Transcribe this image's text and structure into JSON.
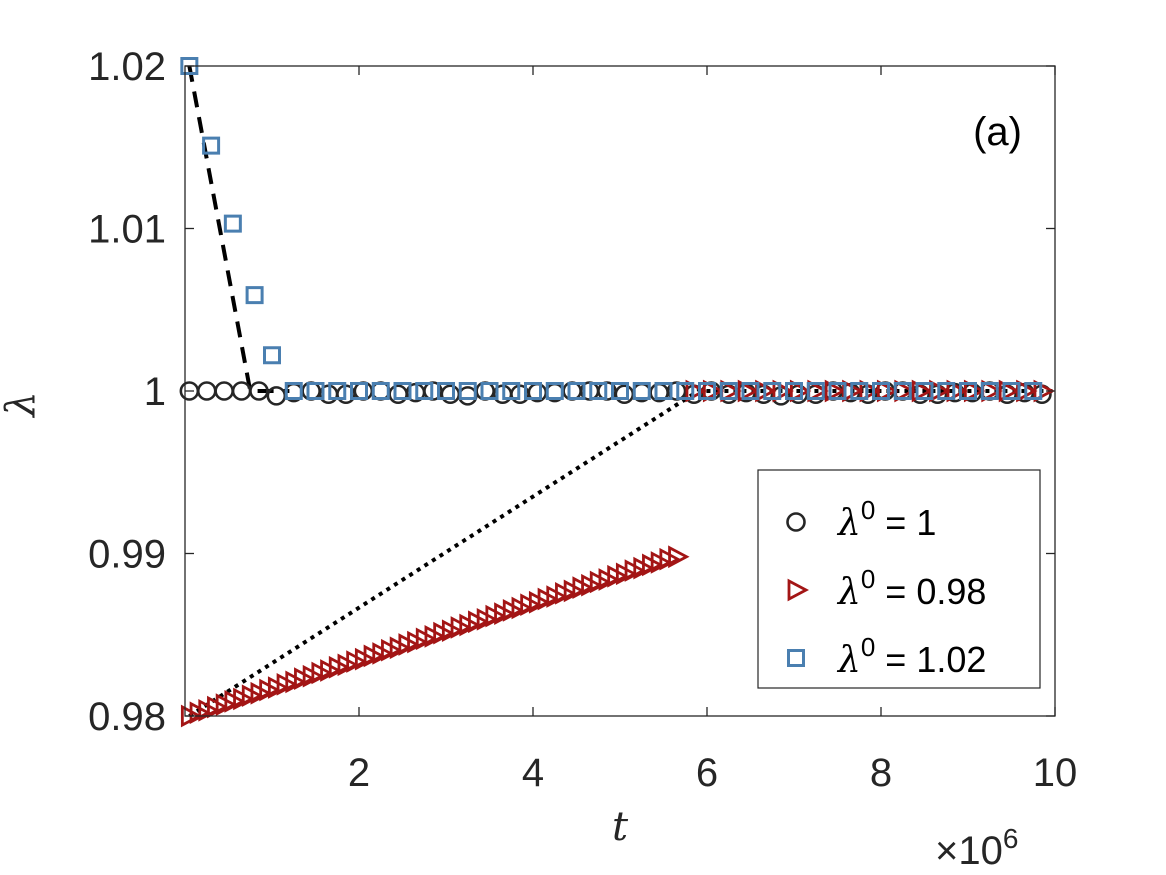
{
  "chart_data": {
    "type": "scatter",
    "panel_label": "(a)",
    "xlabel": "t",
    "ylabel": "λ",
    "x_multiplier": "×10",
    "x_multiplier_exp": "6",
    "xlim": [
      0,
      10
    ],
    "ylim": [
      0.98,
      1.02
    ],
    "x_unit_scale": 1000000,
    "xticks": [
      2,
      4,
      6,
      8,
      10
    ],
    "xtick_labels": [
      "2",
      "4",
      "6",
      "8",
      "10"
    ],
    "yticks": [
      0.98,
      0.99,
      1.0,
      1.01,
      1.02
    ],
    "ytick_labels": [
      "0.98",
      "0.99",
      "1",
      "1.01",
      "1.02"
    ],
    "grid": false,
    "legend_position": "bottom-right",
    "series": [
      {
        "name": "λ0 = 1",
        "legend_symbol": "λ",
        "legend_sup": "0",
        "legend_value": " = 1",
        "marker": "circle",
        "color": "#262626",
        "x_start": 0.05,
        "x_step": 0.2,
        "count": 50,
        "y": [
          1.0,
          1.0,
          1.0,
          1.0,
          1.0,
          0.9997,
          0.9999,
          1.0,
          0.9998,
          0.9998,
          1.0,
          1.0,
          0.9998,
          0.9999,
          1.0,
          0.9998,
          0.9997,
          1.0,
          0.9998,
          0.9998,
          0.9999,
          0.9999,
          1.0,
          1.0,
          1.0,
          0.9998,
          0.9999,
          0.9999,
          1.0,
          0.9998,
          1.0,
          0.9998,
          0.9999,
          0.9998,
          0.9997,
          0.9998,
          0.9998,
          1.0,
          0.9999,
          0.9998,
          1.0,
          1.0,
          0.9998,
          0.9998,
          0.9999,
          0.9999,
          1.0,
          0.9998,
          0.9999,
          0.9998
        ]
      },
      {
        "name": "λ0 = 0.98",
        "legend_symbol": "λ",
        "legend_sup": "0",
        "legend_value": " = 0.98",
        "marker": "triangle-right",
        "color": "#a31515",
        "points": [
          [
            0.05,
            0.98
          ],
          [
            0.15,
            0.9802
          ],
          [
            0.25,
            0.98035
          ],
          [
            0.35,
            0.98055
          ],
          [
            0.45,
            0.9807
          ],
          [
            0.55,
            0.9809
          ],
          [
            0.65,
            0.98105
          ],
          [
            0.75,
            0.98125
          ],
          [
            0.85,
            0.9814
          ],
          [
            0.95,
            0.9816
          ],
          [
            1.05,
            0.98175
          ],
          [
            1.15,
            0.98195
          ],
          [
            1.25,
            0.9821
          ],
          [
            1.35,
            0.9823
          ],
          [
            1.45,
            0.98245
          ],
          [
            1.55,
            0.98265
          ],
          [
            1.65,
            0.9828
          ],
          [
            1.75,
            0.983
          ],
          [
            1.85,
            0.98315
          ],
          [
            1.95,
            0.98335
          ],
          [
            2.05,
            0.9835
          ],
          [
            2.15,
            0.9837
          ],
          [
            2.25,
            0.98385
          ],
          [
            2.35,
            0.98405
          ],
          [
            2.45,
            0.9842
          ],
          [
            2.55,
            0.9844
          ],
          [
            2.65,
            0.98455
          ],
          [
            2.75,
            0.98475
          ],
          [
            2.85,
            0.9849
          ],
          [
            2.95,
            0.9851
          ],
          [
            3.05,
            0.98525
          ],
          [
            3.15,
            0.98545
          ],
          [
            3.25,
            0.9856
          ],
          [
            3.35,
            0.9858
          ],
          [
            3.45,
            0.98595
          ],
          [
            3.55,
            0.98615
          ],
          [
            3.65,
            0.9863
          ],
          [
            3.75,
            0.9865
          ],
          [
            3.85,
            0.98665
          ],
          [
            3.95,
            0.98685
          ],
          [
            4.05,
            0.987
          ],
          [
            4.15,
            0.9872
          ],
          [
            4.25,
            0.98735
          ],
          [
            4.35,
            0.98755
          ],
          [
            4.45,
            0.9877
          ],
          [
            4.55,
            0.9879
          ],
          [
            4.65,
            0.98805
          ],
          [
            4.75,
            0.98825
          ],
          [
            4.85,
            0.9884
          ],
          [
            4.95,
            0.9886
          ],
          [
            5.05,
            0.98875
          ],
          [
            5.15,
            0.98895
          ],
          [
            5.25,
            0.9891
          ],
          [
            5.35,
            0.9893
          ],
          [
            5.45,
            0.98945
          ],
          [
            5.55,
            0.98965
          ],
          [
            5.65,
            0.9898
          ],
          [
            5.85,
            1.0
          ],
          [
            6.05,
            1.0
          ],
          [
            6.25,
            1.0
          ],
          [
            6.45,
            1.0
          ],
          [
            6.65,
            1.0
          ],
          [
            6.85,
            1.0
          ],
          [
            7.05,
            1.0
          ],
          [
            7.25,
            1.0
          ],
          [
            7.45,
            1.0
          ],
          [
            7.65,
            1.0
          ],
          [
            7.85,
            1.0
          ],
          [
            8.05,
            1.0
          ],
          [
            8.25,
            1.0
          ],
          [
            8.45,
            1.0
          ],
          [
            8.65,
            1.0
          ],
          [
            8.85,
            1.0
          ],
          [
            9.05,
            1.0
          ],
          [
            9.25,
            1.0
          ],
          [
            9.45,
            1.0
          ],
          [
            9.65,
            1.0
          ],
          [
            9.85,
            1.0
          ]
        ]
      },
      {
        "name": "λ0 = 1.02",
        "legend_symbol": "λ",
        "legend_sup": "0",
        "legend_value": " = 1.02",
        "marker": "square",
        "color": "#4a7fb0",
        "points": [
          [
            0.05,
            1.02
          ],
          [
            0.3,
            1.0151
          ],
          [
            0.55,
            1.0103
          ],
          [
            0.8,
            1.0059
          ],
          [
            1.0,
            1.0022
          ],
          [
            1.25,
            1.0
          ],
          [
            1.5,
            1.0
          ],
          [
            1.75,
            1.0
          ],
          [
            2.0,
            1.0
          ],
          [
            2.25,
            1.0
          ],
          [
            2.5,
            1.0
          ],
          [
            2.75,
            1.0
          ],
          [
            3.0,
            1.0
          ],
          [
            3.25,
            1.0
          ],
          [
            3.5,
            1.0
          ],
          [
            3.75,
            1.0
          ],
          [
            4.0,
            1.0
          ],
          [
            4.25,
            1.0
          ],
          [
            4.5,
            1.0
          ],
          [
            4.75,
            1.0
          ],
          [
            5.0,
            1.0
          ],
          [
            5.25,
            1.0
          ],
          [
            5.5,
            1.0
          ],
          [
            5.75,
            1.0
          ],
          [
            6.0,
            1.0
          ],
          [
            6.25,
            1.0
          ],
          [
            6.5,
            1.0
          ],
          [
            6.75,
            1.0
          ],
          [
            7.0,
            1.0
          ],
          [
            7.25,
            1.0
          ],
          [
            7.5,
            1.0
          ],
          [
            7.75,
            1.0
          ],
          [
            8.0,
            1.0
          ],
          [
            8.25,
            1.0
          ],
          [
            8.5,
            1.0
          ],
          [
            8.75,
            1.0
          ],
          [
            9.0,
            1.0
          ],
          [
            9.25,
            1.0
          ],
          [
            9.5,
            1.0
          ],
          [
            9.75,
            1.0
          ]
        ]
      }
    ],
    "reference_lines": [
      {
        "style": "dashed",
        "color": "#000000",
        "points": [
          [
            0.05,
            1.02
          ],
          [
            0.75,
            1.0
          ],
          [
            1.2,
            1.0
          ]
        ]
      },
      {
        "style": "dotted",
        "color": "#000000",
        "points": [
          [
            0.05,
            0.98
          ],
          [
            5.9,
            1.0
          ],
          [
            10.0,
            1.0
          ]
        ]
      }
    ]
  }
}
